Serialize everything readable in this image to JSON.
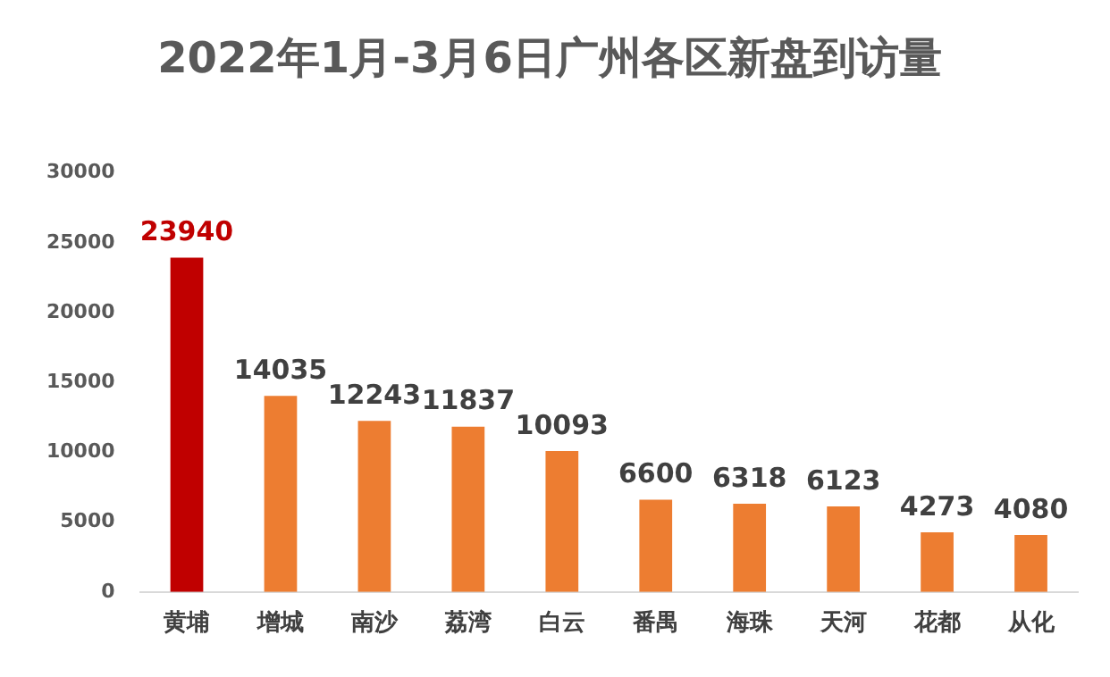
{
  "chart_data": {
    "type": "bar",
    "title": "2022年1月-3月6日广州各区新盘到访量",
    "categories": [
      "黄埔",
      "增城",
      "南沙",
      "荔湾",
      "白云",
      "番禺",
      "海珠",
      "天河",
      "花都",
      "从化"
    ],
    "values": [
      23940,
      14035,
      12243,
      11837,
      10093,
      6600,
      6318,
      6123,
      4273,
      4080
    ],
    "colors": [
      "#c00000",
      "#ed7d31",
      "#ed7d31",
      "#ed7d31",
      "#ed7d31",
      "#ed7d31",
      "#ed7d31",
      "#ed7d31",
      "#ed7d31",
      "#ed7d31"
    ],
    "ylim": [
      0,
      30000
    ],
    "yticks": [
      0,
      5000,
      10000,
      15000,
      20000,
      25000,
      30000
    ],
    "grid": false,
    "legend": false,
    "data_labels": true
  }
}
